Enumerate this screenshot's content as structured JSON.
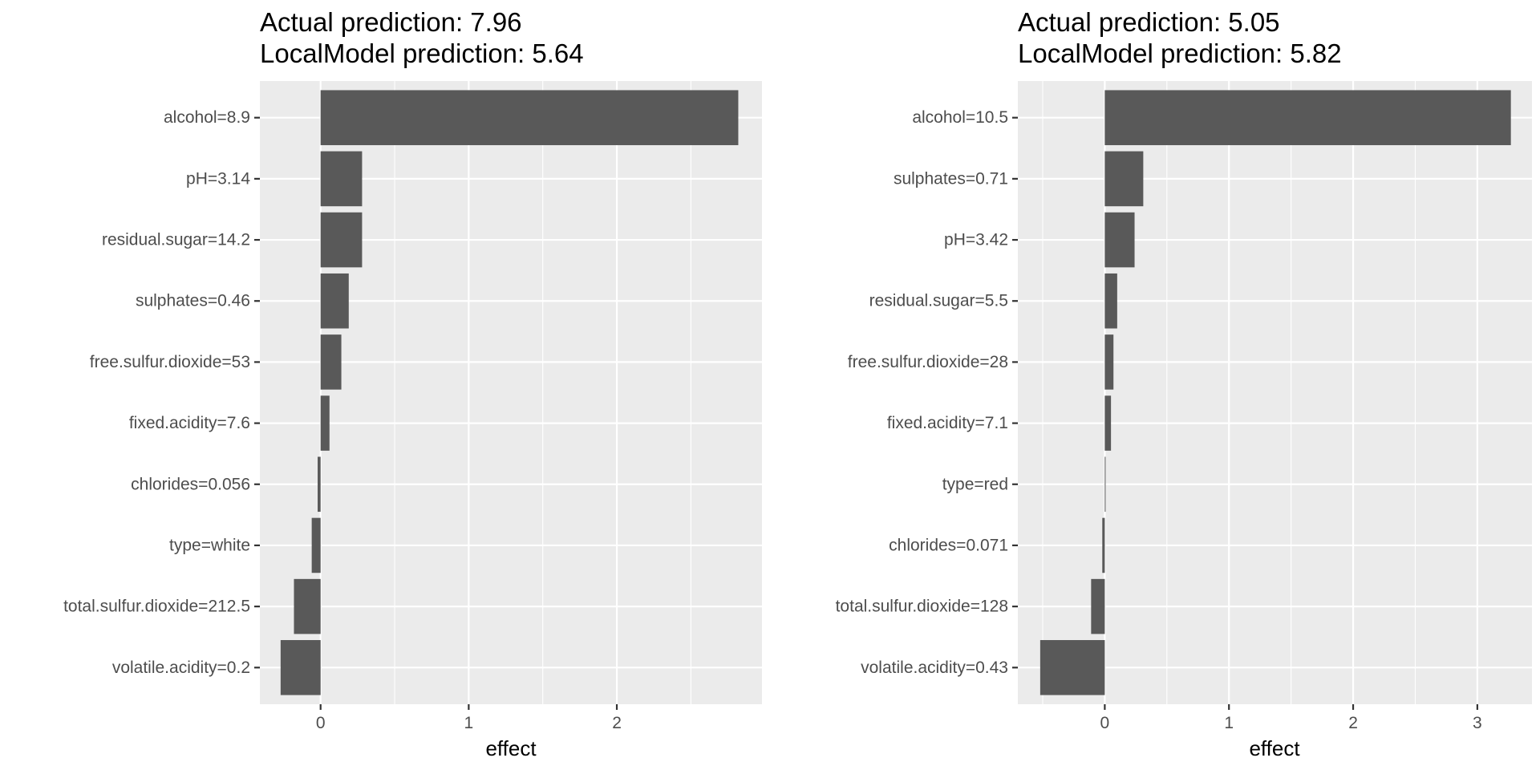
{
  "chart_data": [
    {
      "type": "bar",
      "orientation": "horizontal",
      "title_lines": [
        "Actual prediction: 7.96",
        "LocalModel prediction: 5.64"
      ],
      "xlabel": "effect",
      "ylabel": "",
      "xlim": [
        -0.41,
        2.98
      ],
      "xticks": [
        0,
        1,
        2
      ],
      "xtick_labels": [
        "0",
        "1",
        "2"
      ],
      "grid": true,
      "categories": [
        "alcohol=8.9",
        "pH=3.14",
        "residual.sugar=14.2",
        "sulphates=0.46",
        "free.sulfur.dioxide=53",
        "fixed.acidity=7.6",
        "chlorides=0.056",
        "type=white",
        "total.sulfur.dioxide=212.5",
        "volatile.acidity=0.2"
      ],
      "values": [
        2.82,
        0.28,
        0.28,
        0.19,
        0.14,
        0.06,
        -0.02,
        -0.06,
        -0.18,
        -0.27
      ],
      "bar_color": "#595959",
      "panel_color": "#ebebeb"
    },
    {
      "type": "bar",
      "orientation": "horizontal",
      "title_lines": [
        "Actual prediction: 5.05",
        "LocalModel prediction: 5.82"
      ],
      "xlabel": "effect",
      "ylabel": "",
      "xlim": [
        -0.7,
        3.44
      ],
      "xticks": [
        0,
        1,
        2,
        3
      ],
      "xtick_labels": [
        "0",
        "1",
        "2",
        "3"
      ],
      "grid": true,
      "categories": [
        "alcohol=10.5",
        "sulphates=0.71",
        "pH=3.42",
        "residual.sugar=5.5",
        "free.sulfur.dioxide=28",
        "fixed.acidity=7.1",
        "type=red",
        "chlorides=0.071",
        "total.sulfur.dioxide=128",
        "volatile.acidity=0.43"
      ],
      "values": [
        3.27,
        0.31,
        0.24,
        0.1,
        0.07,
        0.05,
        0.0,
        -0.02,
        -0.11,
        -0.52
      ],
      "bar_color": "#595959",
      "panel_color": "#ebebeb"
    }
  ]
}
